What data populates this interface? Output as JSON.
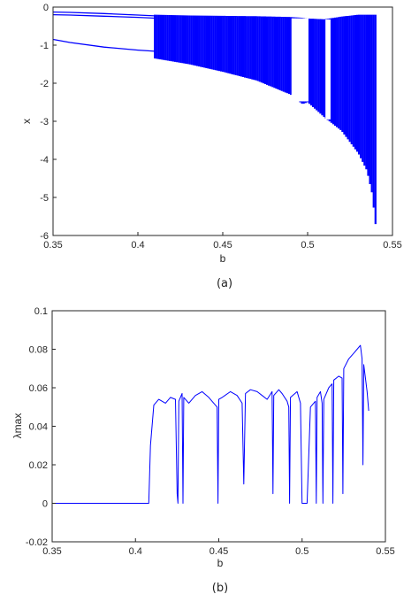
{
  "chart_data": [
    {
      "type": "scatter",
      "caption": "(a)",
      "xlabel": "b",
      "ylabel": "x",
      "xlim": [
        0.35,
        0.55
      ],
      "ylim": [
        -6,
        0
      ],
      "xticks": [
        "0.35",
        "0.4",
        "0.45",
        "0.5",
        "0.55"
      ],
      "yticks": [
        "0",
        "-1",
        "-2",
        "-3",
        "-4",
        "-5",
        "-6"
      ],
      "grid": false,
      "color": "#0000ff",
      "branches": [
        {
          "x": [
            0.35,
            0.36,
            0.38,
            0.4,
            0.41
          ],
          "y": [
            -0.13,
            -0.14,
            -0.17,
            -0.21,
            -0.23
          ]
        },
        {
          "x": [
            0.35,
            0.36,
            0.38,
            0.4,
            0.41
          ],
          "y": [
            -0.2,
            -0.21,
            -0.24,
            -0.27,
            -0.29
          ]
        },
        {
          "x": [
            0.35,
            0.36,
            0.38,
            0.4,
            0.41
          ],
          "y": [
            -0.85,
            -0.93,
            -1.05,
            -1.13,
            -1.16
          ]
        }
      ],
      "chaotic_band": {
        "x": [
          0.41,
          0.43,
          0.45,
          0.47,
          0.49,
          0.497,
          0.5,
          0.51,
          0.52,
          0.53,
          0.535,
          0.538,
          0.54
        ],
        "upper": [
          -0.2,
          -0.22,
          -0.23,
          -0.24,
          -0.26,
          -0.28,
          -0.3,
          -0.32,
          -0.25,
          -0.2,
          -0.2,
          -0.2,
          -0.2
        ],
        "lower": [
          -1.35,
          -1.5,
          -1.7,
          -1.93,
          -2.3,
          -2.55,
          -2.5,
          -2.9,
          -3.25,
          -3.85,
          -4.3,
          -4.9,
          -5.7
        ]
      },
      "windows": [
        {
          "x": [
            0.4905,
            0.5005
          ]
        },
        {
          "x": [
            0.5105,
            0.5135
          ]
        }
      ]
    },
    {
      "type": "line",
      "caption": "(b)",
      "xlabel": "b",
      "ylabel": "λmax",
      "xlim": [
        0.35,
        0.55
      ],
      "ylim": [
        -0.02,
        0.1
      ],
      "xticks": [
        "0.35",
        "0.4",
        "0.45",
        "0.5",
        "0.55"
      ],
      "yticks": [
        "0.1",
        "0.08",
        "0.06",
        "0.04",
        "0.02",
        "0",
        "-0.02"
      ],
      "grid": false,
      "color": "#0000ff",
      "x": [
        0.35,
        0.408,
        0.409,
        0.411,
        0.414,
        0.418,
        0.421,
        0.424,
        0.425,
        0.4255,
        0.426,
        0.428,
        0.4285,
        0.429,
        0.432,
        0.436,
        0.44,
        0.444,
        0.447,
        0.449,
        0.4495,
        0.45,
        0.452,
        0.457,
        0.461,
        0.464,
        0.465,
        0.466,
        0.469,
        0.473,
        0.476,
        0.479,
        0.482,
        0.4825,
        0.483,
        0.486,
        0.488,
        0.491,
        0.492,
        0.4925,
        0.493,
        0.497,
        0.499,
        0.5,
        0.503,
        0.505,
        0.508,
        0.5085,
        0.509,
        0.511,
        0.512,
        0.5125,
        0.513,
        0.516,
        0.518,
        0.5185,
        0.519,
        0.522,
        0.524,
        0.5245,
        0.525,
        0.528,
        0.531,
        0.533,
        0.535,
        0.536,
        0.5365,
        0.537,
        0.538,
        0.539,
        0.54
      ],
      "y": [
        0,
        0,
        0.03,
        0.051,
        0.054,
        0.052,
        0.055,
        0.054,
        0.005,
        0.0,
        0.053,
        0.057,
        0.0,
        0.055,
        0.052,
        0.056,
        0.058,
        0.055,
        0.052,
        0.05,
        0.0,
        0.054,
        0.055,
        0.058,
        0.056,
        0.052,
        0.01,
        0.057,
        0.059,
        0.058,
        0.056,
        0.054,
        0.058,
        0.005,
        0.056,
        0.059,
        0.057,
        0.053,
        0.05,
        0.0,
        0.055,
        0.058,
        0.052,
        0.0,
        0.0,
        0.05,
        0.053,
        0.0,
        0.055,
        0.058,
        0.052,
        0.0,
        0.054,
        0.06,
        0.062,
        0.0,
        0.064,
        0.066,
        0.065,
        0.005,
        0.07,
        0.075,
        0.078,
        0.08,
        0.082,
        0.075,
        0.02,
        0.072,
        0.065,
        0.058,
        0.048
      ]
    }
  ]
}
